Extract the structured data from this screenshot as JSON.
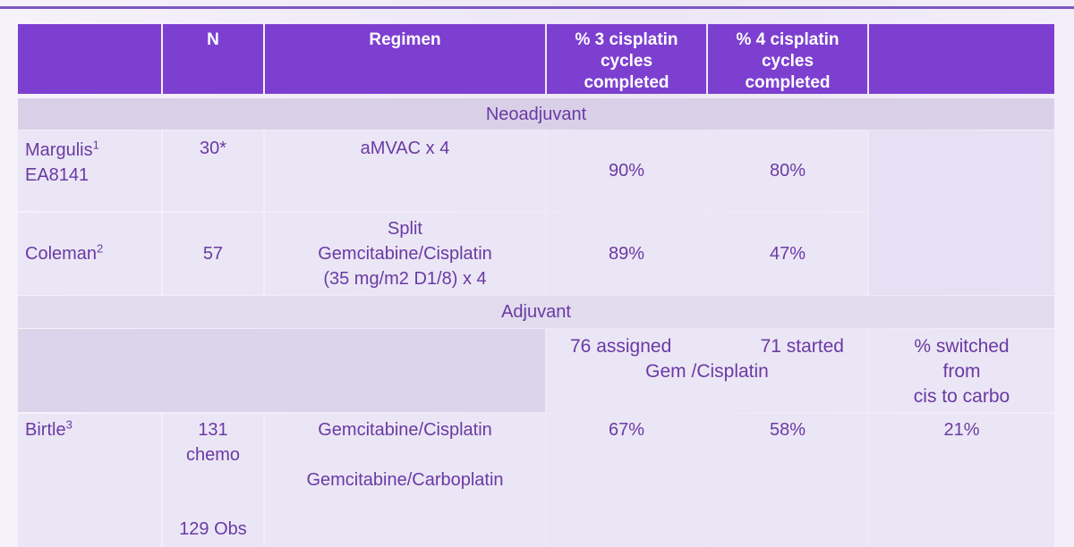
{
  "table": {
    "header": {
      "n": "N",
      "regimen": "Regimen",
      "cycles3": [
        "% 3 cisplatin",
        "cycles",
        "completed"
      ],
      "cycles4": [
        "% 4 cisplatin",
        "cycles",
        "completed"
      ]
    },
    "sections": [
      {
        "title": "Neoadjuvant",
        "rows": [
          {
            "study": "Margulis",
            "ref": "1",
            "trial": "EA8141",
            "n": "30*",
            "regimen": [
              "aMVAC x 4"
            ],
            "cycles3": "90%",
            "cycles4": "80%"
          },
          {
            "study": "Coleman",
            "ref": "2",
            "n": "57",
            "regimen": [
              "Split",
              "Gemcitabine/Cisplatin",
              "(35 mg/m2 D1/8) x 4"
            ],
            "cycles3": "89%",
            "cycles4": "47%"
          }
        ]
      },
      {
        "title": "Adjuvant",
        "subheader": {
          "assigned": "76 assigned",
          "started": "71 started",
          "regimen": "Gem /Cisplatin",
          "switched": [
            "% switched",
            "from",
            "cis to carbo"
          ]
        },
        "rows": [
          {
            "study": "Birtle",
            "ref": "3",
            "n": [
              "131",
              "chemo"
            ],
            "obs": "129 Obs",
            "regimen": [
              "Gemcitabine/Cisplatin",
              "Gemcitabine/Carboplatin"
            ],
            "cycles3": "67%",
            "cycles4": "58%",
            "switched": "21%"
          }
        ]
      }
    ]
  }
}
